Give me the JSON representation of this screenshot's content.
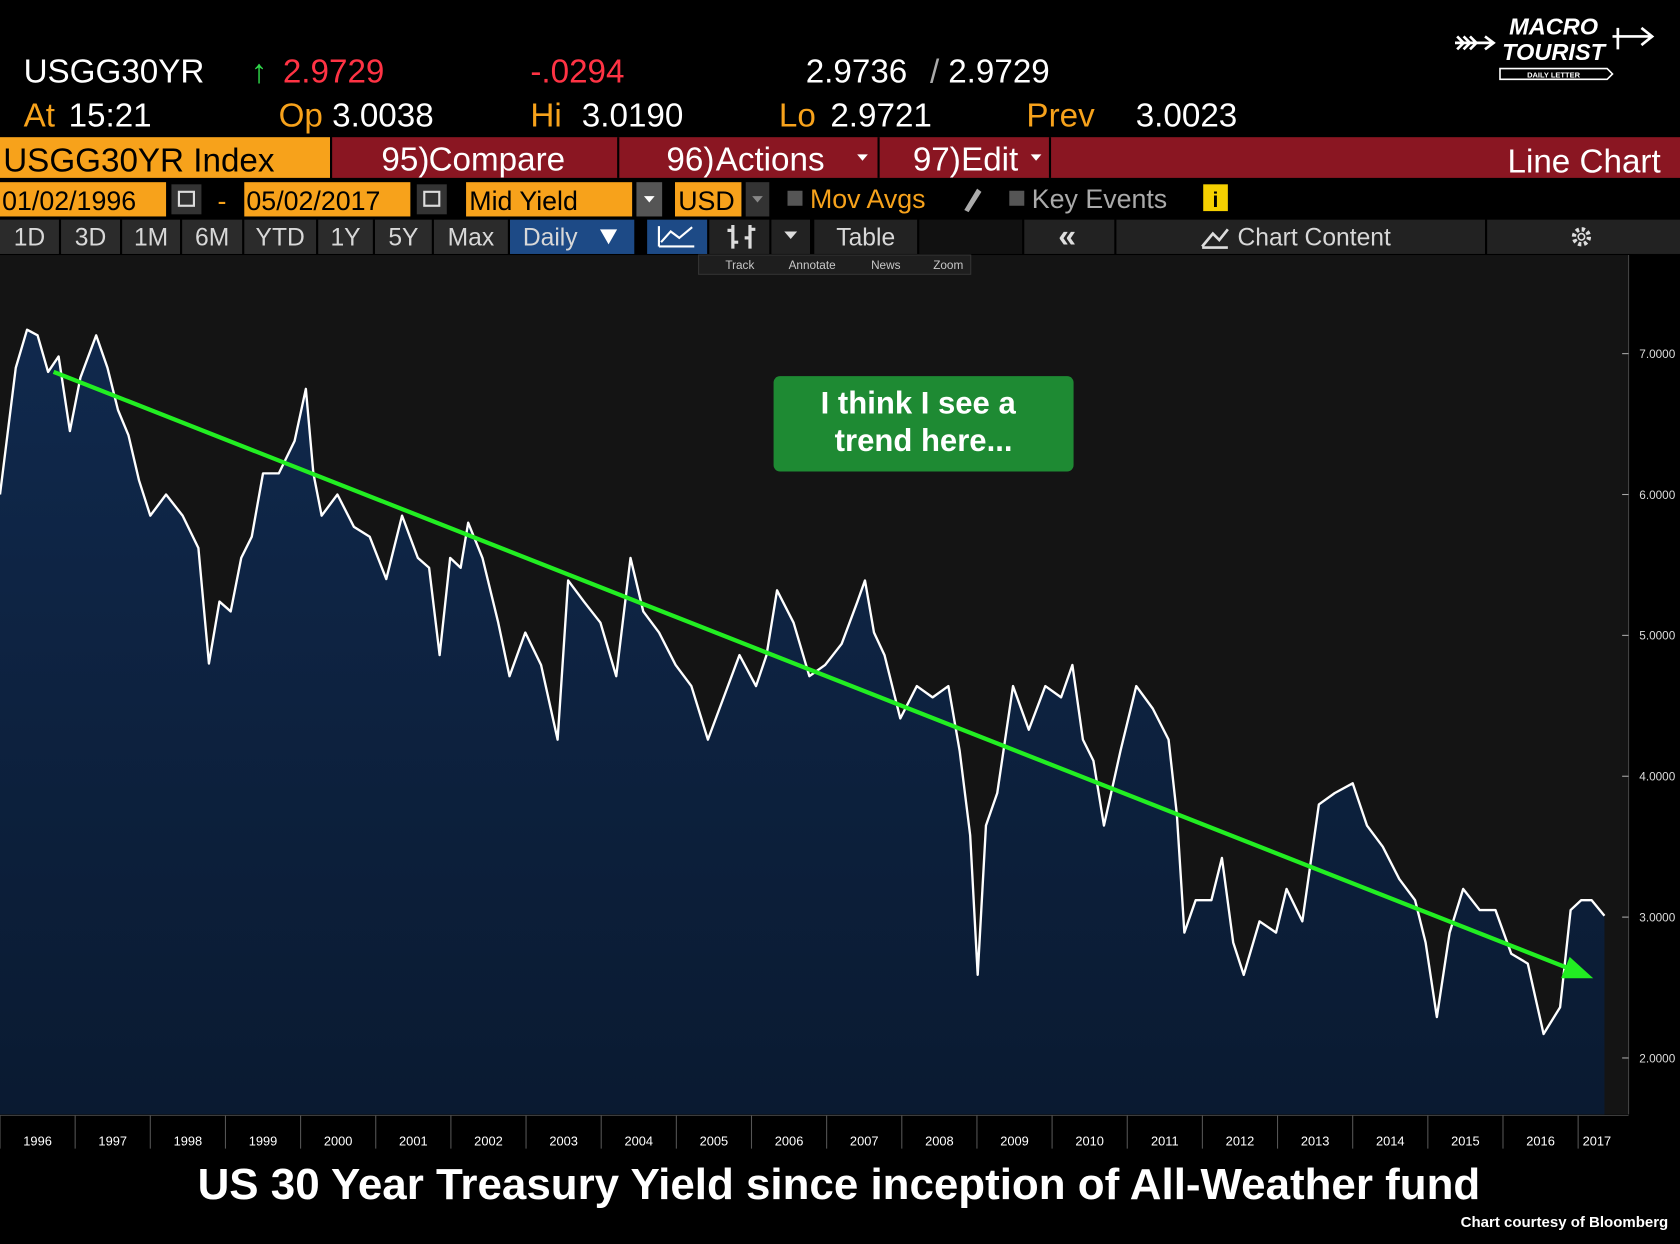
{
  "header": {
    "ticker": "USGG30YR",
    "last": "2.9729",
    "change": "-.0294",
    "bid": "2.9736",
    "ask": "2.9729",
    "at_label": "At",
    "time": "15:21",
    "open_label": "Op",
    "open": "3.0038",
    "high_label": "Hi",
    "high": "3.0190",
    "low_label": "Lo",
    "low": "2.9721",
    "prev_label": "Prev",
    "prev": "3.0023"
  },
  "logo": {
    "line1": "MACRO",
    "line2": "TOURIST",
    "tagline": "DAILY LETTER"
  },
  "menu": {
    "security": "USGG30YR Index",
    "compare_num": "95)",
    "compare": "Compare",
    "actions_num": "96)",
    "actions": "Actions",
    "edit_num": "97)",
    "edit": "Edit",
    "chart_kind": "Line Chart"
  },
  "settings": {
    "start_date": "01/02/1996",
    "dash": "-",
    "end_date": "05/02/2017",
    "field": "Mid Yield",
    "currency": "USD",
    "mov_avgs": "Mov Avgs",
    "key_events": "Key Events"
  },
  "toolbar": {
    "periods": [
      "1D",
      "3D",
      "1M",
      "6M",
      "YTD",
      "1Y",
      "5Y",
      "Max"
    ],
    "frequency": "Daily",
    "table": "Table",
    "collapse": "«",
    "chart_content": "Chart Content",
    "tools": [
      "Track",
      "Annotate",
      "News",
      "Zoom"
    ]
  },
  "chart_data": {
    "type": "area",
    "title": "US 30 Year Treasury Yield since inception of All-Weather fund",
    "credit": "Chart courtesy of Bloomberg",
    "annotation": [
      "I think I see a",
      "trend here..."
    ],
    "line_color": "#ffffff",
    "fill_color": "#10294d",
    "x": [
      1996.0,
      1996.07,
      1996.21,
      1996.36,
      1996.5,
      1996.64,
      1996.78,
      1996.93,
      1997.07,
      1997.28,
      1997.43,
      1997.57,
      1997.71,
      1997.85,
      1998.0,
      1998.21,
      1998.43,
      1998.64,
      1998.78,
      1998.92,
      1999.07,
      1999.21,
      1999.35,
      1999.5,
      1999.71,
      1999.92,
      2000.07,
      2000.17,
      2000.28,
      2000.49,
      2000.71,
      2000.92,
      2001.14,
      2001.35,
      2001.56,
      2001.71,
      2001.85,
      2001.99,
      2002.13,
      2002.23,
      2002.42,
      2002.63,
      2002.78,
      2002.99,
      2003.2,
      2003.42,
      2003.56,
      2003.77,
      2003.99,
      2004.2,
      2004.39,
      2004.56,
      2004.77,
      2004.99,
      2005.2,
      2005.42,
      2005.63,
      2005.84,
      2006.06,
      2006.2,
      2006.34,
      2006.56,
      2006.77,
      2006.98,
      2007.2,
      2007.41,
      2007.51,
      2007.63,
      2007.77,
      2007.98,
      2008.2,
      2008.41,
      2008.62,
      2008.77,
      2008.91,
      2009.01,
      2009.12,
      2009.27,
      2009.48,
      2009.69,
      2009.91,
      2010.12,
      2010.27,
      2010.41,
      2010.55,
      2010.69,
      2010.91,
      2011.12,
      2011.34,
      2011.55,
      2011.66,
      2011.76,
      2011.91,
      2012.12,
      2012.26,
      2012.41,
      2012.55,
      2012.76,
      2012.98,
      2013.12,
      2013.33,
      2013.55,
      2013.76,
      2014.0,
      2014.19,
      2014.4,
      2014.62,
      2014.83,
      2014.97,
      2015.12,
      2015.29,
      2015.47,
      2015.69,
      2015.9,
      2016.11,
      2016.33,
      2016.54,
      2016.76,
      2016.9,
      2017.04,
      2017.18,
      2017.35
    ],
    "values": [
      6.0,
      6.3,
      6.9,
      7.17,
      7.13,
      6.87,
      6.98,
      6.45,
      6.83,
      7.13,
      6.9,
      6.6,
      6.42,
      6.1,
      5.85,
      6.0,
      5.85,
      5.62,
      4.8,
      5.24,
      5.17,
      5.55,
      5.7,
      6.15,
      6.15,
      6.38,
      6.75,
      6.15,
      5.85,
      6.0,
      5.77,
      5.7,
      5.4,
      5.85,
      5.55,
      5.48,
      4.86,
      5.55,
      5.48,
      5.8,
      5.55,
      5.09,
      4.71,
      5.02,
      4.79,
      4.26,
      5.39,
      5.24,
      5.09,
      4.71,
      5.55,
      5.17,
      5.02,
      4.79,
      4.64,
      4.26,
      4.56,
      4.86,
      4.64,
      4.86,
      5.32,
      5.09,
      4.71,
      4.79,
      4.94,
      5.24,
      5.39,
      5.02,
      4.86,
      4.41,
      4.64,
      4.56,
      4.64,
      4.18,
      3.58,
      2.59,
      3.65,
      3.88,
      4.64,
      4.33,
      4.64,
      4.56,
      4.79,
      4.26,
      4.11,
      3.65,
      4.18,
      4.64,
      4.48,
      4.26,
      3.73,
      2.89,
      3.12,
      3.12,
      3.42,
      2.82,
      2.59,
      2.97,
      2.89,
      3.2,
      2.97,
      3.8,
      3.88,
      3.95,
      3.65,
      3.5,
      3.27,
      3.12,
      2.82,
      2.29,
      2.89,
      3.2,
      3.05,
      3.05,
      2.74,
      2.67,
      2.17,
      2.36,
      3.05,
      3.12,
      3.12,
      3.01
    ],
    "xlim": [
      1996,
      2017.5
    ],
    "xticks": [
      1996,
      1997,
      1998,
      1999,
      2000,
      2001,
      2002,
      2003,
      2004,
      2005,
      2006,
      2007,
      2008,
      2009,
      2010,
      2011,
      2012,
      2013,
      2014,
      2015,
      2016,
      2017
    ],
    "ylim": [
      1.6,
      7.7
    ],
    "yticks": [
      {
        "value": 2,
        "label": "2.0000"
      },
      {
        "value": 3,
        "label": "3.0000"
      },
      {
        "value": 4,
        "label": "4.0000"
      },
      {
        "value": 5,
        "label": "5.0000"
      },
      {
        "value": 6,
        "label": "6.0000"
      },
      {
        "value": 7,
        "label": "7.0000"
      }
    ]
  }
}
